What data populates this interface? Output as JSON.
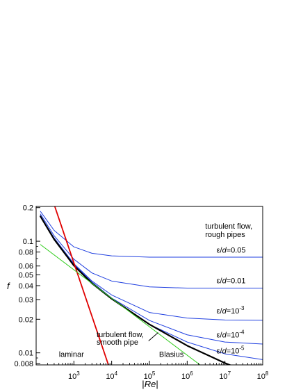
{
  "chart_data": {
    "type": "line",
    "title": "",
    "xlabel": "|Re|",
    "ylabel": "f",
    "xscale": "log",
    "yscale": "log",
    "xlim": [
      100,
      100000000
    ],
    "ylim": [
      0.0078,
      0.205
    ],
    "grid": false,
    "x_ticks": [
      {
        "value": 1000,
        "base": "10",
        "exp": "3"
      },
      {
        "value": 10000,
        "base": "10",
        "exp": "4"
      },
      {
        "value": 100000,
        "base": "10",
        "exp": "5"
      },
      {
        "value": 1000000,
        "base": "10",
        "exp": "6"
      },
      {
        "value": 10000000,
        "base": "10",
        "exp": "7"
      },
      {
        "value": 100000000,
        "base": "10",
        "exp": "8"
      }
    ],
    "y_ticks": [
      {
        "value": 0.2,
        "label": "0.2"
      },
      {
        "value": 0.1,
        "label": "0.1"
      },
      {
        "value": 0.08,
        "label": "0.08"
      },
      {
        "value": 0.06,
        "label": "0.06"
      },
      {
        "value": 0.05,
        "label": "0.05"
      },
      {
        "value": 0.04,
        "label": "0.04"
      },
      {
        "value": 0.03,
        "label": "0.03"
      },
      {
        "value": 0.02,
        "label": "0.02"
      },
      {
        "value": 0.01,
        "label": "0.01"
      },
      {
        "value": 0.008,
        "label": "0.008"
      }
    ],
    "series": [
      {
        "color": "#1f3fe0",
        "x": [
          130,
          300,
          1000,
          3000,
          10000,
          100000,
          1000000,
          100000000
        ],
        "y": [
          0.185,
          0.125,
          0.089,
          0.078,
          0.074,
          0.072,
          0.072,
          0.072
        ]
      },
      {
        "color": "#1f3fe0",
        "x": [
          130,
          300,
          1000,
          3000,
          10000,
          100000,
          1000000,
          100000000
        ],
        "y": [
          0.175,
          0.112,
          0.069,
          0.052,
          0.044,
          0.039,
          0.038,
          0.038
        ]
      },
      {
        "color": "#1f3fe0",
        "x": [
          130,
          300,
          1000,
          3000,
          10000,
          100000,
          1000000,
          10000000,
          100000000
        ],
        "y": [
          0.17,
          0.107,
          0.063,
          0.044,
          0.033,
          0.023,
          0.0205,
          0.0197,
          0.0196
        ]
      },
      {
        "color": "#1f3fe0",
        "x": [
          130,
          300,
          1000,
          3000,
          10000,
          100000,
          1000000,
          10000000,
          100000000
        ],
        "y": [
          0.168,
          0.105,
          0.062,
          0.043,
          0.031,
          0.0195,
          0.0145,
          0.0125,
          0.012
        ]
      },
      {
        "color": "#1f3fe0",
        "x": [
          130,
          300,
          1000,
          3000,
          10000,
          100000,
          1000000,
          10000000,
          100000000
        ],
        "y": [
          0.167,
          0.105,
          0.061,
          0.042,
          0.0305,
          0.018,
          0.0125,
          0.0098,
          0.0087
        ]
      },
      {
        "color": "#000000",
        "x": [
          130,
          300,
          1000,
          3000,
          10000,
          100000,
          1000000,
          10000000,
          30000000
        ],
        "y": [
          0.167,
          0.104,
          0.0605,
          0.042,
          0.0305,
          0.018,
          0.0116,
          0.0081,
          0.007
        ]
      },
      {
        "color": "#e00000",
        "x": [
          300,
          10000
        ],
        "y": [
          0.213,
          0.0064
        ]
      },
      {
        "color": "#2ecc1a",
        "x": [
          130,
          3000000
        ],
        "y": [
          0.0933,
          0.0072
        ]
      }
    ],
    "annotations": [
      {
        "text": "turbulent flow,",
        "x": 3000000,
        "y": 0.13
      },
      {
        "text": "rough pipes",
        "x": 3000000,
        "y": 0.109
      },
      {
        "parts": [
          {
            "t": "ε/"
          },
          {
            "t": "d",
            "it": true
          },
          {
            "t": "=0.05"
          }
        ],
        "x": 6000000,
        "y": 0.079
      },
      {
        "parts": [
          {
            "t": "ε/"
          },
          {
            "t": "d",
            "it": true
          },
          {
            "t": "=0.01"
          }
        ],
        "x": 6000000,
        "y": 0.042
      },
      {
        "parts": [
          {
            "t": "ε/"
          },
          {
            "t": "d",
            "it": true
          },
          {
            "t": "=10"
          },
          {
            "t": "-3",
            "sup": true
          }
        ],
        "x": 6000000,
        "y": 0.0225
      },
      {
        "parts": [
          {
            "t": "ε/"
          },
          {
            "t": "d",
            "it": true
          },
          {
            "t": "=10"
          },
          {
            "t": "-4",
            "sup": true
          }
        ],
        "x": 6000000,
        "y": 0.0137
      },
      {
        "parts": [
          {
            "t": "ε/"
          },
          {
            "t": "d",
            "it": true
          },
          {
            "t": "=10"
          },
          {
            "t": "-5",
            "sup": true
          }
        ],
        "x": 6000000,
        "y": 0.0099
      },
      {
        "text": "turbulent flow,",
        "x": 4000,
        "y": 0.0138
      },
      {
        "text": "smooth pipe",
        "x": 4000,
        "y": 0.0118
      },
      {
        "text": "laminar",
        "x": 400,
        "y": 0.0092
      },
      {
        "text": "Blasius",
        "x": 180000,
        "y": 0.0092
      }
    ]
  }
}
